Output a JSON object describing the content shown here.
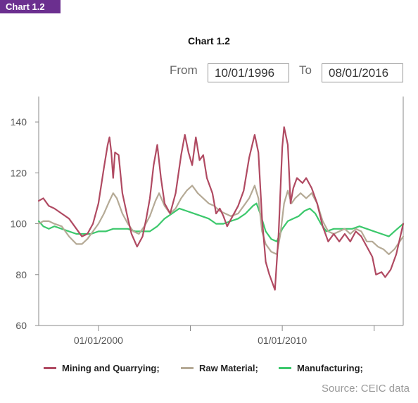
{
  "header": {
    "tag": "Chart 1.2",
    "title": "Chart 1.2",
    "from_label": "From",
    "from_value": "10/01/1996",
    "to_label": "To",
    "to_value": "08/01/2016"
  },
  "source": "Source: CEIC data",
  "colors": {
    "mining": "#b04a62",
    "raw": "#b5aa96",
    "manufacturing": "#3cc86c",
    "axis": "#888888",
    "tag_bg": "#6b2f8f"
  },
  "chart_data": {
    "type": "line",
    "title": "Chart 1.2",
    "xlabel": "",
    "ylabel": "",
    "xlim": [
      1996.75,
      2016.58
    ],
    "ylim": [
      60,
      150
    ],
    "yticks": [
      60,
      80,
      100,
      120,
      140
    ],
    "xticks": [
      {
        "label": "01/01/2000",
        "x": 2000
      },
      {
        "label": "01/01/2010",
        "x": 2010
      }
    ],
    "legend": "bottom",
    "series": [
      {
        "name": "Mining and Quarrying;",
        "color": "#b04a62",
        "points": [
          [
            1996.75,
            109
          ],
          [
            1997.0,
            110
          ],
          [
            1997.3,
            107
          ],
          [
            1997.6,
            106
          ],
          [
            1998.0,
            104
          ],
          [
            1998.4,
            102
          ],
          [
            1998.8,
            98
          ],
          [
            1999.1,
            95
          ],
          [
            1999.4,
            96
          ],
          [
            1999.7,
            100
          ],
          [
            2000.0,
            108
          ],
          [
            2000.3,
            122
          ],
          [
            2000.5,
            131
          ],
          [
            2000.6,
            134
          ],
          [
            2000.7,
            128
          ],
          [
            2000.8,
            118
          ],
          [
            2000.9,
            128
          ],
          [
            2001.1,
            127
          ],
          [
            2001.3,
            112
          ],
          [
            2001.6,
            102
          ],
          [
            2001.8,
            96
          ],
          [
            2002.1,
            91
          ],
          [
            2002.4,
            95
          ],
          [
            2002.6,
            102
          ],
          [
            2002.8,
            110
          ],
          [
            2003.0,
            123
          ],
          [
            2003.2,
            131
          ],
          [
            2003.4,
            118
          ],
          [
            2003.6,
            108
          ],
          [
            2003.9,
            104
          ],
          [
            2004.2,
            112
          ],
          [
            2004.5,
            127
          ],
          [
            2004.7,
            135
          ],
          [
            2004.9,
            128
          ],
          [
            2005.1,
            123
          ],
          [
            2005.3,
            134
          ],
          [
            2005.5,
            125
          ],
          [
            2005.7,
            127
          ],
          [
            2005.9,
            118
          ],
          [
            2006.2,
            112
          ],
          [
            2006.4,
            104
          ],
          [
            2006.6,
            106
          ],
          [
            2006.8,
            103
          ],
          [
            2007.0,
            99
          ],
          [
            2007.3,
            103
          ],
          [
            2007.6,
            107
          ],
          [
            2007.9,
            113
          ],
          [
            2008.2,
            126
          ],
          [
            2008.5,
            135
          ],
          [
            2008.7,
            128
          ],
          [
            2008.9,
            102
          ],
          [
            2009.1,
            85
          ],
          [
            2009.3,
            80
          ],
          [
            2009.6,
            74
          ],
          [
            2009.8,
            96
          ],
          [
            2010.0,
            130
          ],
          [
            2010.1,
            138
          ],
          [
            2010.3,
            131
          ],
          [
            2010.45,
            108
          ],
          [
            2010.6,
            114
          ],
          [
            2010.8,
            118
          ],
          [
            2011.1,
            116
          ],
          [
            2011.3,
            118
          ],
          [
            2011.6,
            114
          ],
          [
            2011.9,
            108
          ],
          [
            2012.2,
            99
          ],
          [
            2012.5,
            93
          ],
          [
            2012.8,
            96
          ],
          [
            2013.1,
            93
          ],
          [
            2013.4,
            96
          ],
          [
            2013.7,
            93
          ],
          [
            2014.0,
            97
          ],
          [
            2014.3,
            95
          ],
          [
            2014.6,
            91
          ],
          [
            2014.9,
            87
          ],
          [
            2015.1,
            80
          ],
          [
            2015.4,
            81
          ],
          [
            2015.6,
            79
          ],
          [
            2015.9,
            82
          ],
          [
            2016.2,
            88
          ],
          [
            2016.58,
            100
          ]
        ]
      },
      {
        "name": "Raw Material;",
        "color": "#b5aa96",
        "points": [
          [
            1996.75,
            100
          ],
          [
            1997.0,
            101
          ],
          [
            1997.3,
            101
          ],
          [
            1997.6,
            100
          ],
          [
            1998.0,
            99
          ],
          [
            1998.4,
            95
          ],
          [
            1998.8,
            92
          ],
          [
            1999.1,
            92
          ],
          [
            1999.4,
            94
          ],
          [
            1999.7,
            97
          ],
          [
            2000.0,
            100
          ],
          [
            2000.3,
            104
          ],
          [
            2000.6,
            109
          ],
          [
            2000.8,
            112
          ],
          [
            2001.0,
            110
          ],
          [
            2001.3,
            104
          ],
          [
            2001.6,
            100
          ],
          [
            2001.9,
            97
          ],
          [
            2002.2,
            96
          ],
          [
            2002.5,
            99
          ],
          [
            2002.8,
            103
          ],
          [
            2003.1,
            109
          ],
          [
            2003.3,
            112
          ],
          [
            2003.6,
            107
          ],
          [
            2003.9,
            104
          ],
          [
            2004.2,
            106
          ],
          [
            2004.5,
            110
          ],
          [
            2004.8,
            113
          ],
          [
            2005.1,
            115
          ],
          [
            2005.4,
            112
          ],
          [
            2005.7,
            110
          ],
          [
            2006.0,
            108
          ],
          [
            2006.3,
            107
          ],
          [
            2006.6,
            105
          ],
          [
            2006.9,
            104
          ],
          [
            2007.2,
            103
          ],
          [
            2007.6,
            104
          ],
          [
            2007.9,
            107
          ],
          [
            2008.2,
            110
          ],
          [
            2008.5,
            115
          ],
          [
            2008.7,
            110
          ],
          [
            2008.9,
            97
          ],
          [
            2009.1,
            92
          ],
          [
            2009.4,
            89
          ],
          [
            2009.7,
            88
          ],
          [
            2009.9,
            96
          ],
          [
            2010.1,
            108
          ],
          [
            2010.3,
            113
          ],
          [
            2010.5,
            108
          ],
          [
            2010.7,
            110
          ],
          [
            2011.0,
            112
          ],
          [
            2011.3,
            110
          ],
          [
            2011.6,
            112
          ],
          [
            2011.9,
            108
          ],
          [
            2012.2,
            101
          ],
          [
            2012.5,
            97
          ],
          [
            2012.8,
            96
          ],
          [
            2013.1,
            97
          ],
          [
            2013.4,
            98
          ],
          [
            2013.7,
            96
          ],
          [
            2014.0,
            98
          ],
          [
            2014.3,
            97
          ],
          [
            2014.6,
            93
          ],
          [
            2014.9,
            93
          ],
          [
            2015.2,
            91
          ],
          [
            2015.5,
            90
          ],
          [
            2015.8,
            88
          ],
          [
            2016.1,
            90
          ],
          [
            2016.58,
            95
          ]
        ]
      },
      {
        "name": "Manufacturing;",
        "color": "#3cc86c",
        "points": [
          [
            1996.75,
            101
          ],
          [
            1997.0,
            99
          ],
          [
            1997.3,
            98
          ],
          [
            1997.6,
            99
          ],
          [
            1998.0,
            98
          ],
          [
            1998.4,
            97
          ],
          [
            1998.8,
            96
          ],
          [
            1999.2,
            96
          ],
          [
            1999.6,
            96
          ],
          [
            2000.0,
            97
          ],
          [
            2000.4,
            97
          ],
          [
            2000.8,
            98
          ],
          [
            2001.2,
            98
          ],
          [
            2001.6,
            98
          ],
          [
            2002.0,
            97
          ],
          [
            2002.4,
            97
          ],
          [
            2002.8,
            97
          ],
          [
            2003.2,
            99
          ],
          [
            2003.6,
            102
          ],
          [
            2004.0,
            104
          ],
          [
            2004.4,
            106
          ],
          [
            2004.8,
            105
          ],
          [
            2005.2,
            104
          ],
          [
            2005.6,
            103
          ],
          [
            2006.0,
            102
          ],
          [
            2006.4,
            100
          ],
          [
            2006.8,
            100
          ],
          [
            2007.2,
            101
          ],
          [
            2007.6,
            102
          ],
          [
            2008.0,
            104
          ],
          [
            2008.4,
            107
          ],
          [
            2008.6,
            108
          ],
          [
            2008.8,
            104
          ],
          [
            2009.1,
            97
          ],
          [
            2009.4,
            94
          ],
          [
            2009.7,
            93
          ],
          [
            2010.0,
            98
          ],
          [
            2010.3,
            101
          ],
          [
            2010.6,
            102
          ],
          [
            2010.9,
            103
          ],
          [
            2011.2,
            105
          ],
          [
            2011.5,
            106
          ],
          [
            2011.8,
            104
          ],
          [
            2012.1,
            100
          ],
          [
            2012.4,
            97
          ],
          [
            2012.8,
            98
          ],
          [
            2013.1,
            98
          ],
          [
            2013.4,
            98
          ],
          [
            2013.8,
            98
          ],
          [
            2014.2,
            99
          ],
          [
            2014.6,
            98
          ],
          [
            2015.0,
            97
          ],
          [
            2015.4,
            96
          ],
          [
            2015.8,
            95
          ],
          [
            2016.1,
            97
          ],
          [
            2016.58,
            100
          ]
        ]
      }
    ]
  }
}
